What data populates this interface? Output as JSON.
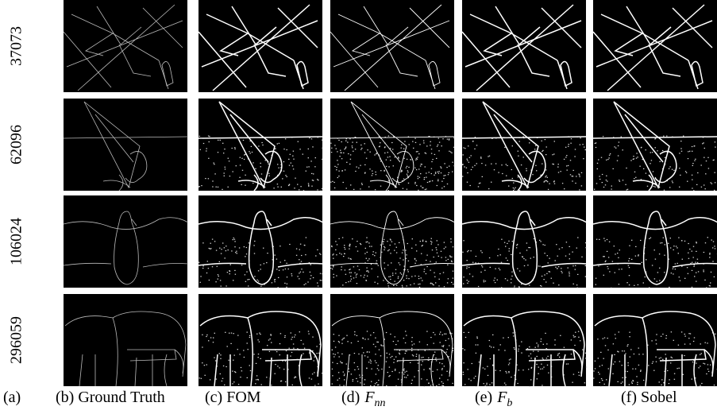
{
  "rows": [
    "37073",
    "62096",
    "106024",
    "296059"
  ],
  "columns": [
    {
      "text": "(a)"
    },
    {
      "text": "(b) Ground Truth"
    },
    {
      "text": "(c) FOM"
    },
    {
      "text": "(d)",
      "symbol": "F",
      "subscript": "nn"
    },
    {
      "text": "(e)",
      "symbol": "F",
      "subscript": "b"
    },
    {
      "text": "(f) Sobel"
    }
  ]
}
